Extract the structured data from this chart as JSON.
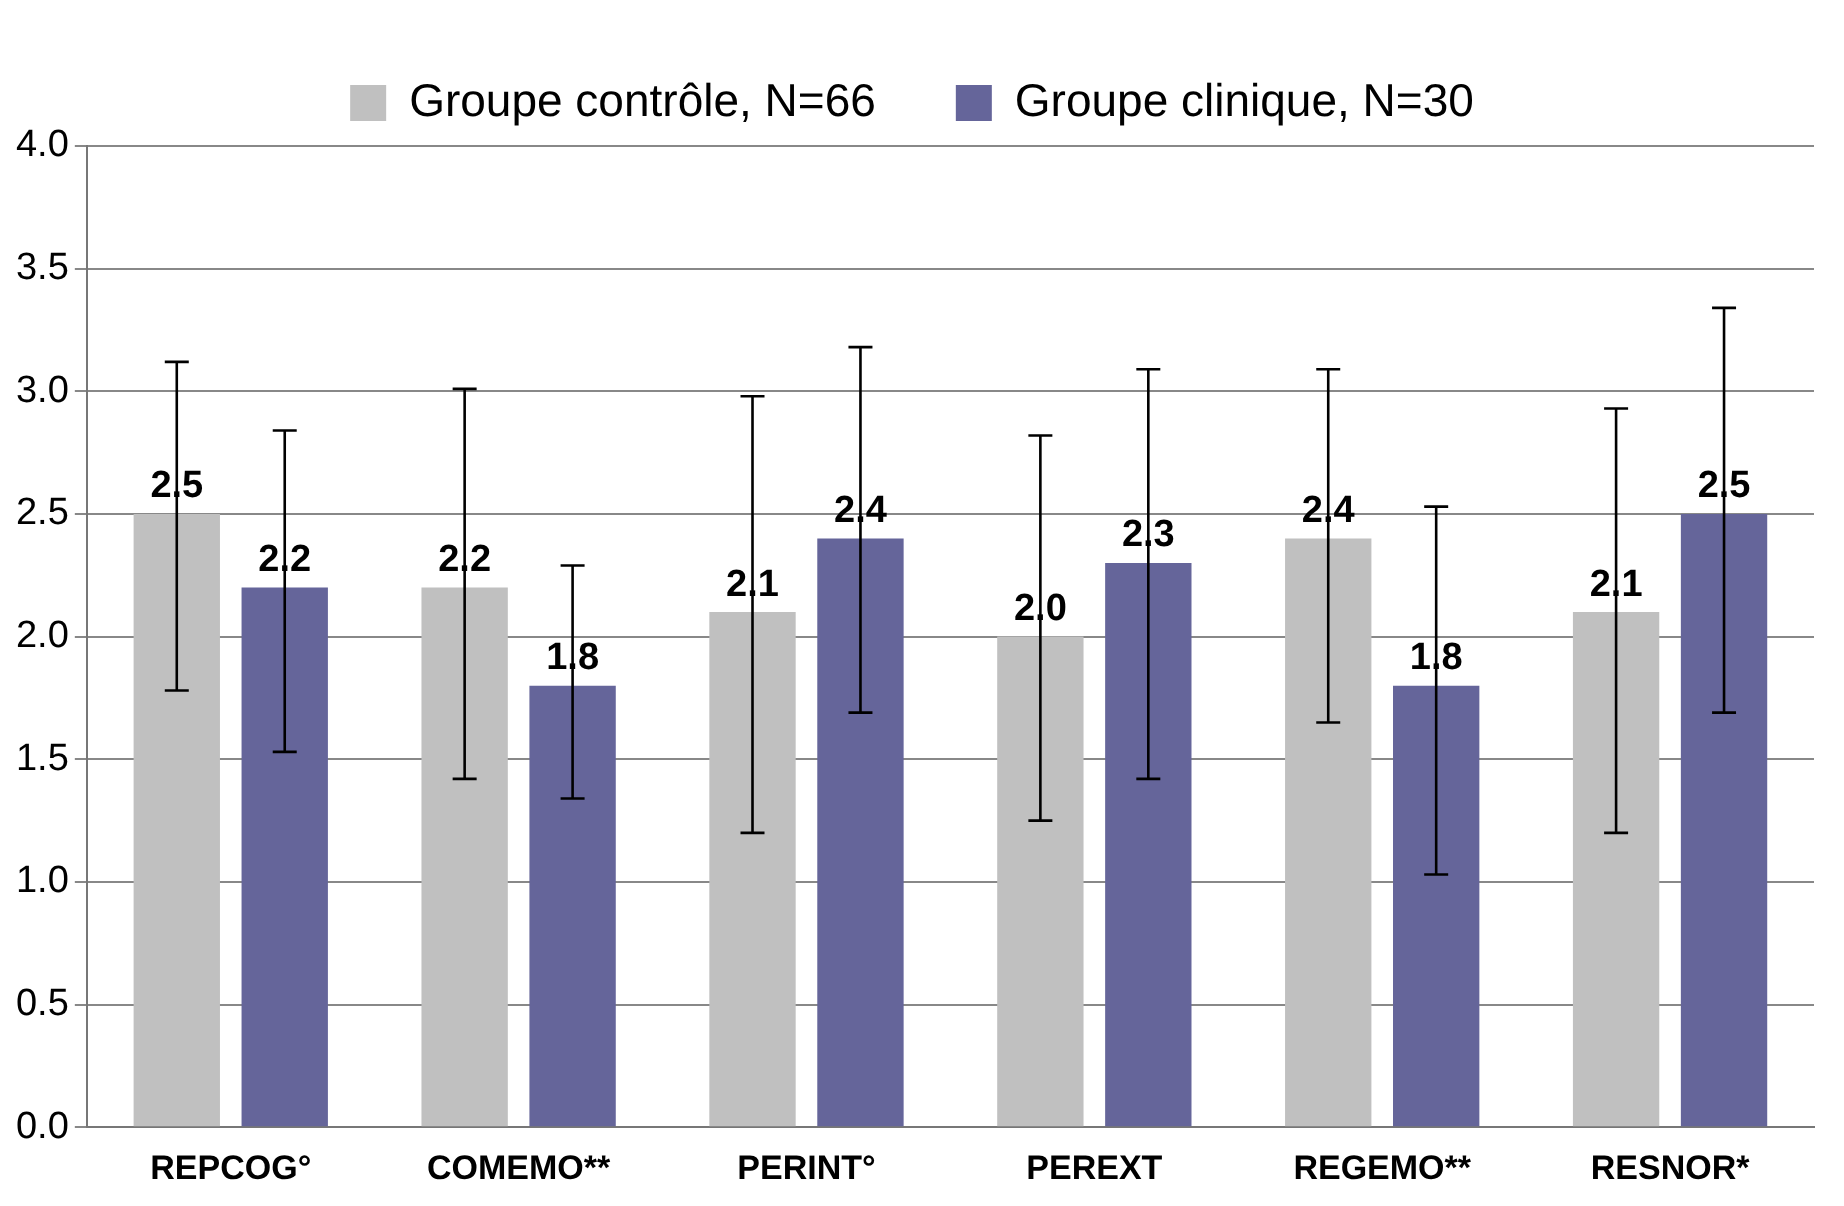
{
  "chart_data": {
    "type": "bar",
    "categories": [
      "REPCOG°",
      "COMEMO**",
      "PERINT°",
      "PEREXT",
      "REGEMO**",
      "RESNOR*"
    ],
    "series": [
      {
        "name": "Groupe contrôle, N=66",
        "color": "#c0c0c0",
        "values": [
          2.5,
          2.2,
          2.1,
          2.0,
          2.4,
          2.1
        ],
        "value_labels": [
          "2.5",
          "2.2",
          "2.1",
          "2.0",
          "2.4",
          "2.1"
        ],
        "errors": [
          [
            1.78,
            3.12
          ],
          [
            1.42,
            3.01
          ],
          [
            1.2,
            2.98
          ],
          [
            1.25,
            2.82
          ],
          [
            1.65,
            3.09
          ],
          [
            1.2,
            2.93
          ]
        ]
      },
      {
        "name": "Groupe clinique, N=30",
        "color": "#65659a",
        "values": [
          2.2,
          1.8,
          2.4,
          2.3,
          1.8,
          2.5
        ],
        "value_labels": [
          "2.2",
          "1.8",
          "2.4",
          "2.3",
          "1.8",
          "2.5"
        ],
        "errors": [
          [
            1.53,
            2.84
          ],
          [
            1.34,
            2.29
          ],
          [
            1.69,
            3.18
          ],
          [
            1.42,
            3.09
          ],
          [
            1.03,
            2.53
          ],
          [
            1.69,
            3.34
          ]
        ]
      }
    ],
    "ylim": [
      0,
      4
    ],
    "yticks": [
      {
        "value": 0,
        "label": "0.0"
      },
      {
        "value": 0.5,
        "label": "0.5"
      },
      {
        "value": 1,
        "label": "1.0"
      },
      {
        "value": 1.5,
        "label": "1.5"
      },
      {
        "value": 2,
        "label": "2.0"
      },
      {
        "value": 2.5,
        "label": "2.5"
      },
      {
        "value": 3,
        "label": "3.0"
      },
      {
        "value": 3.5,
        "label": "3.5"
      },
      {
        "value": 4,
        "label": "4.0"
      }
    ],
    "grid": "y",
    "legend": "top"
  }
}
